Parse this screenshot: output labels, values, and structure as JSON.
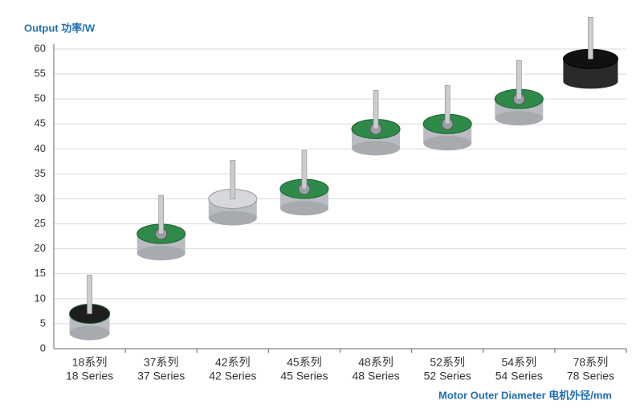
{
  "chart_data": {
    "type": "motor-scatter",
    "title": "Output 功率/W",
    "x_label": "Motor Outer Diameter 电机外径/mm",
    "categories_cn": [
      "18系列",
      "37系列",
      "42系列",
      "45系列",
      "48系列",
      "52系列",
      "54系列",
      "78系列"
    ],
    "categories": [
      "18 Series",
      "37 Series",
      "42 Series",
      "45 Series",
      "48 Series",
      "52 Series",
      "54 Series",
      "78 Series"
    ],
    "values": [
      7,
      23,
      30,
      32,
      44,
      45,
      50,
      58
    ],
    "ylim": [
      0,
      60
    ],
    "yticks": [
      0,
      5,
      10,
      15,
      20,
      25,
      30,
      35,
      40,
      45,
      50,
      55,
      60
    ],
    "grid": true
  }
}
